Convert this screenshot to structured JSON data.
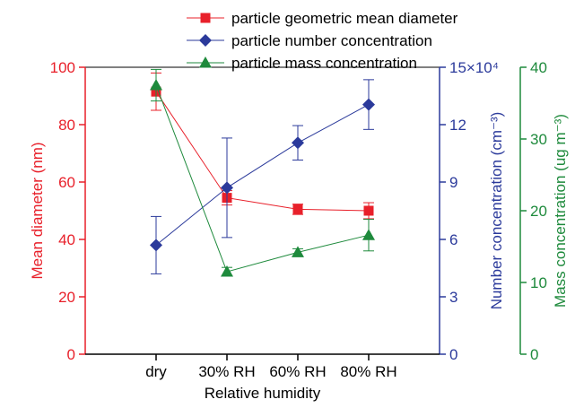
{
  "chart_data": {
    "type": "line",
    "categories": [
      "dry",
      "30% RH",
      "60% RH",
      "80% RH"
    ],
    "xlabel": "Relative humidity",
    "axes": {
      "left": {
        "label": "Mean diameter (nm)",
        "ylim": [
          0,
          100
        ],
        "ticks": [
          0,
          20,
          40,
          60,
          80,
          100
        ],
        "color": "#e8202a"
      },
      "right1": {
        "label": "Number concentration (cm⁻³)",
        "ylim": [
          0,
          15
        ],
        "ticks": [
          0,
          3,
          6,
          9,
          12,
          15
        ],
        "top_tick_label": "15×10⁴",
        "color": "#2b3a9b"
      },
      "right2": {
        "label": "Mass concentration (ug m⁻³)",
        "ylim": [
          0,
          40
        ],
        "ticks": [
          0,
          10,
          20,
          30,
          40
        ],
        "color": "#1e8a3c"
      }
    },
    "series": [
      {
        "name": "particle geometric mean diameter",
        "axis": "left",
        "color": "#e8202a",
        "marker": "square",
        "values": [
          91.5,
          54.5,
          50.5,
          50.0
        ],
        "errors": [
          6.5,
          2.5,
          1.8,
          2.8
        ]
      },
      {
        "name": "particle number concentration",
        "axis": "right1",
        "color": "#2b3a9b",
        "marker": "diamond",
        "values": [
          5.7,
          8.7,
          11.05,
          13.05
        ],
        "errors": [
          1.5,
          2.6,
          0.9,
          1.3
        ]
      },
      {
        "name": "particle mass concentration",
        "axis": "right2",
        "color": "#1e8a3c",
        "marker": "triangle",
        "values": [
          37.5,
          11.5,
          14.2,
          16.6
        ],
        "errors": [
          2.2,
          0.6,
          0.5,
          2.2
        ]
      }
    ],
    "legend_position": "top"
  }
}
